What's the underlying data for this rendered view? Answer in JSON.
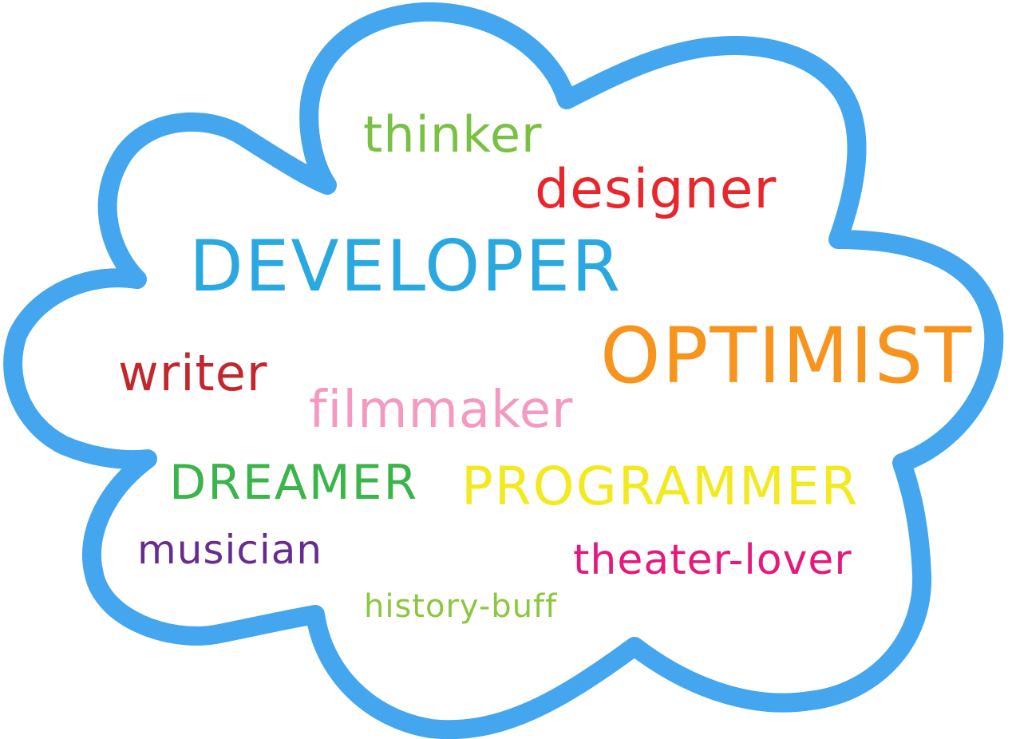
{
  "cloud": {
    "stroke_color": "#43a6ef",
    "fill_color": "#ffffff",
    "shape": "cloud-outline"
  },
  "words": [
    {
      "key": "thinker",
      "text": "thinker",
      "color": "#7ac143"
    },
    {
      "key": "designer",
      "text": "designer",
      "color": "#e8262b"
    },
    {
      "key": "developer",
      "text": "DEVELOPER",
      "color": "#2aa8e0"
    },
    {
      "key": "optimist",
      "text": "OPTIMIST",
      "color": "#f7941d"
    },
    {
      "key": "writer",
      "text": "writer",
      "color": "#c1272d"
    },
    {
      "key": "filmmaker",
      "text": "filmmaker",
      "color": "#f49ac1"
    },
    {
      "key": "dreamer",
      "text": "DREAMER",
      "color": "#3ab54a"
    },
    {
      "key": "programmer",
      "text": "PROGRAMMER",
      "color": "#f2ea1e"
    },
    {
      "key": "musician",
      "text": "musician",
      "color": "#662d91"
    },
    {
      "key": "theater_lover",
      "text": "theater-lover",
      "color": "#e5197c"
    },
    {
      "key": "history_buff",
      "text": "history-buff",
      "color": "#8dc63f"
    }
  ]
}
